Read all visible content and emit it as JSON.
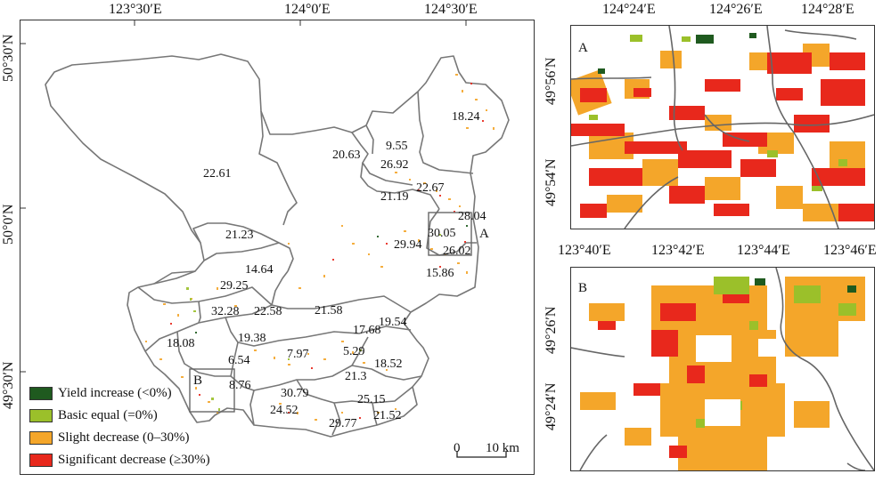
{
  "main_map": {
    "top_coords": [
      "123°30′E",
      "124°0′E",
      "124°30′E"
    ],
    "left_coords": [
      "50°30′N",
      "50°0′N",
      "49°30′N"
    ],
    "region_labels": [
      "18.24",
      "9.55",
      "20.63",
      "26.92",
      "22.61",
      "22.67",
      "21.19",
      "28.04",
      "21.23",
      "30.05",
      "29.94",
      "26.02",
      "14.64",
      "15.86",
      "29.25",
      "32.28",
      "22.58",
      "21.58",
      "19.54",
      "17.68",
      "18.08",
      "19.38",
      "5.29",
      "7.97",
      "6.54",
      "18.52",
      "21.3",
      "8.76",
      "30.79",
      "25.15",
      "24.52",
      "21.52",
      "29.77"
    ],
    "box_a_label": "A",
    "box_b_label": "B",
    "scale_zero": "0",
    "scale_label": "10 km"
  },
  "inset_a": {
    "letter": "A",
    "top_coords": [
      "124°24′E",
      "124°26′E",
      "124°28′E"
    ],
    "left_coords": [
      "49°56′N",
      "49°54′N"
    ]
  },
  "inset_b": {
    "letter": "B",
    "top_coords": [
      "123°40′E",
      "123°42′E",
      "123°44′E",
      "123°46′E"
    ],
    "left_coords": [
      "49°26′N",
      "49°24′N"
    ]
  },
  "legend": [
    {
      "label": "Yield increase (<0%)",
      "color": "#1f5a1f"
    },
    {
      "label": "Basic equal (=0%)",
      "color": "#9bc02a"
    },
    {
      "label": "Slight decrease (0–30%)",
      "color": "#f4a62a"
    },
    {
      "label": "Significant decrease (≥30%)",
      "color": "#e8281c"
    }
  ]
}
